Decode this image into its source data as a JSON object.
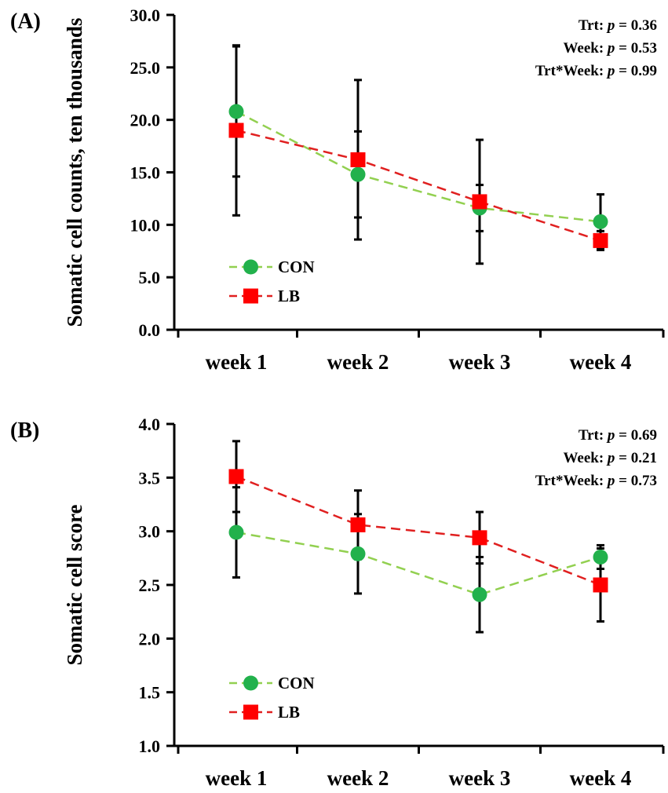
{
  "chart_data": [
    {
      "type": "line",
      "panel_label": "(A)",
      "ylabel": "Somatic cell counts, ten thousands",
      "categories": [
        "week 1",
        "week 2",
        "week 3",
        "week 4"
      ],
      "yticks": [
        "0.0",
        "5.0",
        "10.0",
        "15.0",
        "20.0",
        "25.0",
        "30.0"
      ],
      "ylim": [
        0,
        30
      ],
      "stats": [
        {
          "name": "Trt",
          "p": "0.36"
        },
        {
          "name": "Week",
          "p": "0.53"
        },
        {
          "name": "Trt*Week",
          "p": "0.99"
        }
      ],
      "series": [
        {
          "name": "CON",
          "marker": "circle",
          "color": "#22b14c",
          "line_color": "#92d050",
          "values": [
            20.8,
            14.8,
            11.6,
            10.3
          ],
          "err": [
            6.2,
            4.1,
            2.2,
            2.6
          ]
        },
        {
          "name": "LB",
          "marker": "square",
          "color": "#ff0000",
          "line_color": "#e02020",
          "values": [
            19.0,
            16.2,
            12.2,
            8.5
          ],
          "err": [
            8.1,
            7.6,
            5.9,
            0.9
          ]
        }
      ],
      "legend": [
        "CON",
        "LB"
      ]
    },
    {
      "type": "line",
      "panel_label": "(B)",
      "ylabel": "Somatic cell score",
      "categories": [
        "week 1",
        "week 2",
        "week 3",
        "week 4"
      ],
      "yticks": [
        "1.0",
        "1.5",
        "2.0",
        "2.5",
        "3.0",
        "3.5",
        "4.0"
      ],
      "ylim": [
        1,
        4
      ],
      "stats": [
        {
          "name": "Trt",
          "p": "0.69"
        },
        {
          "name": "Week",
          "p": "0.21"
        },
        {
          "name": "Trt*Week",
          "p": "0.73"
        }
      ],
      "series": [
        {
          "name": "CON",
          "marker": "circle",
          "color": "#22b14c",
          "line_color": "#92d050",
          "values": [
            2.99,
            2.79,
            2.41,
            2.76
          ],
          "err": [
            0.42,
            0.37,
            0.35,
            0.11
          ]
        },
        {
          "name": "LB",
          "marker": "square",
          "color": "#ff0000",
          "line_color": "#e02020",
          "values": [
            3.51,
            3.06,
            2.94,
            2.5
          ],
          "err": [
            0.33,
            0.32,
            0.24,
            0.34
          ]
        }
      ],
      "legend": [
        "CON",
        "LB"
      ]
    }
  ]
}
